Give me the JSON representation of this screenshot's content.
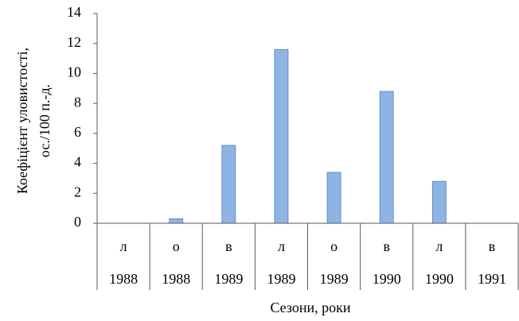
{
  "chart_data": {
    "type": "bar",
    "ylabel": [
      "Коефіцієнт уловистості,",
      "ос./100 п.-д."
    ],
    "xlabel": "Сезони, роки",
    "categories": [
      "л",
      "о",
      "в",
      "л",
      "о",
      "в",
      "л",
      "в"
    ],
    "category_years": [
      "1988",
      "1988",
      "1989",
      "1989",
      "1989",
      "1990",
      "1990",
      "1991"
    ],
    "values": [
      0,
      0.3,
      5.2,
      11.6,
      3.4,
      8.8,
      2.8,
      0
    ],
    "color": "#8eb4e3",
    "ylim": [
      0,
      14
    ],
    "yticks": [
      0,
      2,
      4,
      6,
      8,
      10,
      12,
      14
    ],
    "grid": false
  }
}
